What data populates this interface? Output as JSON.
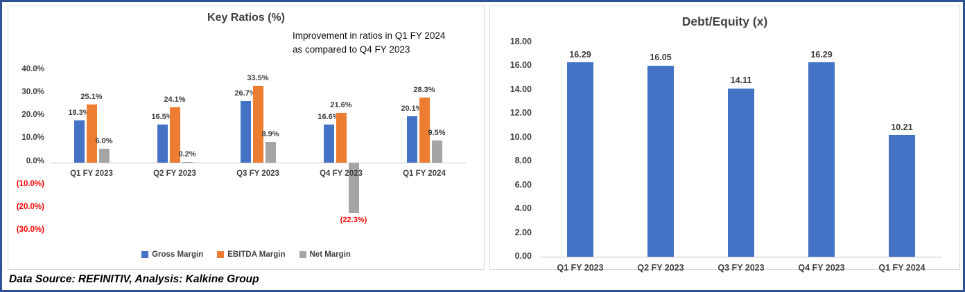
{
  "style": {
    "frame_border": "#2E5395",
    "axis_text": "#404040",
    "negative_text": "#FF0000",
    "panel_border": "#D9D9D9"
  },
  "footer": {
    "source": "Data Source: REFINITIV, Analysis: Kalkine Group"
  },
  "chart_data": [
    {
      "type": "bar",
      "title": "Key Ratios (%)",
      "annotation": "Improvement in ratios in Q1 FY 2024 as compared to Q4 FY 2023",
      "categories": [
        "Q1 FY 2023",
        "Q2 FY 2023",
        "Q3 FY 2023",
        "Q4 FY 2023",
        "Q1 FY 2024"
      ],
      "series": [
        {
          "name": "Gross Margin",
          "color": "#4472C4",
          "values": [
            18.3,
            16.5,
            26.7,
            16.6,
            20.1
          ],
          "labels": [
            "18.3%",
            "16.5%",
            "26.7%",
            "16.6%",
            "20.1%"
          ]
        },
        {
          "name": "EBITDA Margin",
          "color": "#ED7D31",
          "values": [
            25.1,
            24.1,
            33.5,
            21.6,
            28.3
          ],
          "labels": [
            "25.1%",
            "24.1%",
            "33.5%",
            "21.6%",
            "28.3%"
          ]
        },
        {
          "name": "Net Margin",
          "color": "#A5A5A5",
          "values": [
            6.0,
            0.2,
            8.9,
            -22.3,
            9.5
          ],
          "labels": [
            "6.0%",
            "0.2%",
            "8.9%",
            "(22.3%)",
            "9.5%"
          ]
        }
      ],
      "ylim": [
        -30,
        40
      ],
      "yticks": [
        {
          "v": 40,
          "label": "40.0%"
        },
        {
          "v": 30,
          "label": "30.0%"
        },
        {
          "v": 20,
          "label": "20.0%"
        },
        {
          "v": 10,
          "label": "10.0%"
        },
        {
          "v": 0,
          "label": "0.0%"
        },
        {
          "v": -10,
          "label": "(10.0%)",
          "negative": true
        },
        {
          "v": -20,
          "label": "(20.0%)",
          "negative": true
        },
        {
          "v": -30,
          "label": "(30.0%)",
          "negative": true
        }
      ],
      "grid": false,
      "legend_position": "bottom"
    },
    {
      "type": "bar",
      "title": "Debt/Equity (x)",
      "categories": [
        "Q1 FY 2023",
        "Q2 FY 2023",
        "Q3 FY 2023",
        "Q4 FY 2023",
        "Q1 FY 2024"
      ],
      "series": [
        {
          "name": "Debt/Equity",
          "color": "#4472C4",
          "values": [
            16.29,
            16.05,
            14.11,
            16.29,
            10.21
          ],
          "labels": [
            "16.29",
            "16.05",
            "14.11",
            "16.29",
            "10.21"
          ]
        }
      ],
      "ylim": [
        0,
        18
      ],
      "yticks": [
        {
          "v": 18,
          "label": "18.00"
        },
        {
          "v": 16,
          "label": "16.00"
        },
        {
          "v": 14,
          "label": "14.00"
        },
        {
          "v": 12,
          "label": "12.00"
        },
        {
          "v": 10,
          "label": "10.00"
        },
        {
          "v": 8,
          "label": "8.00"
        },
        {
          "v": 6,
          "label": "6.00"
        },
        {
          "v": 4,
          "label": "4.00"
        },
        {
          "v": 2,
          "label": "2.00"
        },
        {
          "v": 0,
          "label": "0.00"
        }
      ],
      "grid": false,
      "legend_position": "none"
    }
  ]
}
